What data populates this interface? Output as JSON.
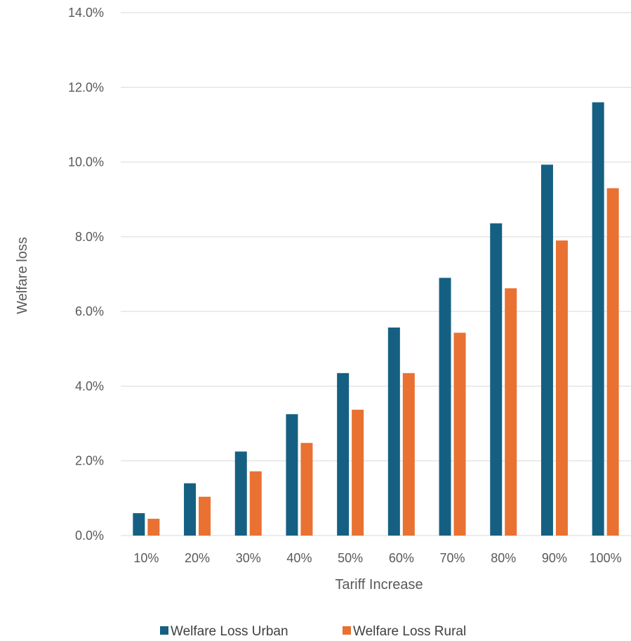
{
  "chart_data": {
    "type": "bar",
    "title": "",
    "xlabel": "Tariff Increase",
    "ylabel": "Welfare loss",
    "ylim": [
      0,
      14
    ],
    "y_ticks": [
      "0.0%",
      "2.0%",
      "4.0%",
      "6.0%",
      "8.0%",
      "10.0%",
      "12.0%",
      "14.0%"
    ],
    "grid": true,
    "legend_position": "bottom",
    "categories": [
      "10%",
      "20%",
      "30%",
      "40%",
      "50%",
      "60%",
      "70%",
      "80%",
      "90%",
      "100%"
    ],
    "series": [
      {
        "name": "Welfare Loss Urban",
        "color": "#156082",
        "values": [
          0.6,
          1.4,
          2.25,
          3.25,
          4.35,
          5.57,
          6.9,
          8.36,
          9.93,
          11.6
        ]
      },
      {
        "name": "Welfare Loss Rural",
        "color": "#E97132",
        "values": [
          0.45,
          1.04,
          1.72,
          2.48,
          3.37,
          4.35,
          5.43,
          6.62,
          7.9,
          9.3
        ]
      }
    ]
  }
}
